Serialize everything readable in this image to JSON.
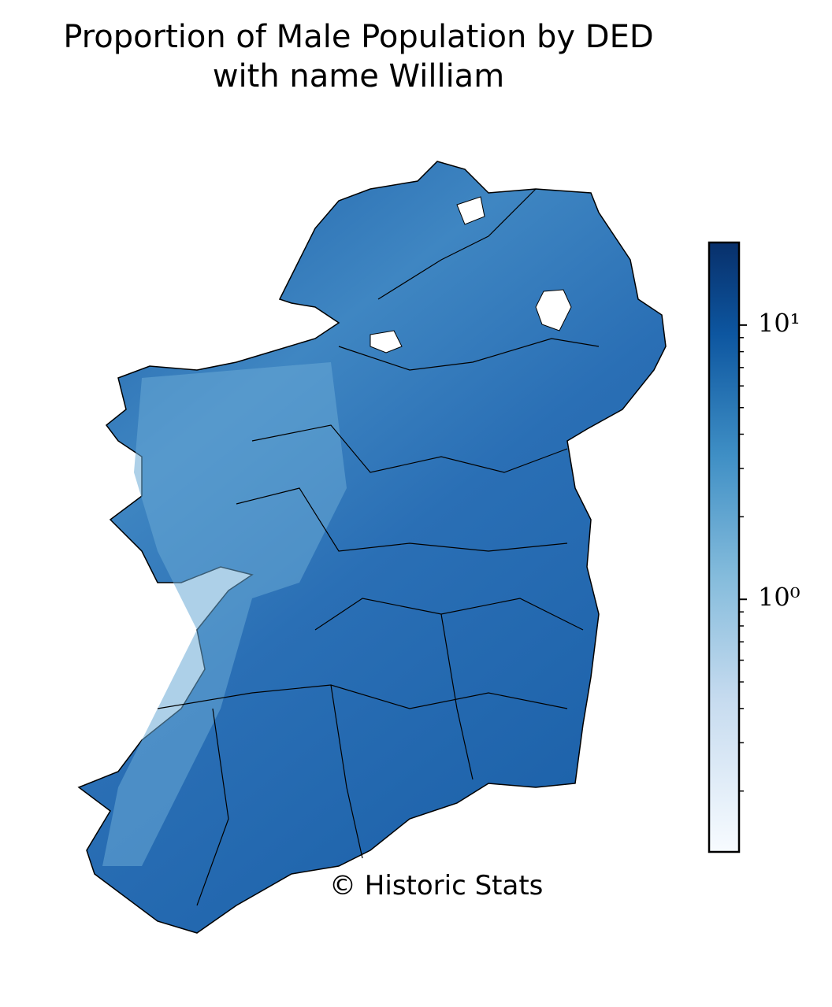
{
  "chart_data": {
    "type": "choropleth",
    "title": "Proportion of Male Population by DED\nwith name William",
    "credit": "© Historic Stats",
    "colorbar": {
      "scale": "log",
      "lim": [
        0.12,
        20
      ],
      "ticks": [
        {
          "value": 1,
          "label": "10⁰"
        },
        {
          "value": 10,
          "label": "10¹"
        }
      ],
      "minor_ticks": [
        0.2,
        0.3,
        0.4,
        0.5,
        0.6,
        0.7,
        0.8,
        0.9,
        2,
        3,
        4,
        5,
        6,
        7,
        8,
        9
      ]
    }
  }
}
